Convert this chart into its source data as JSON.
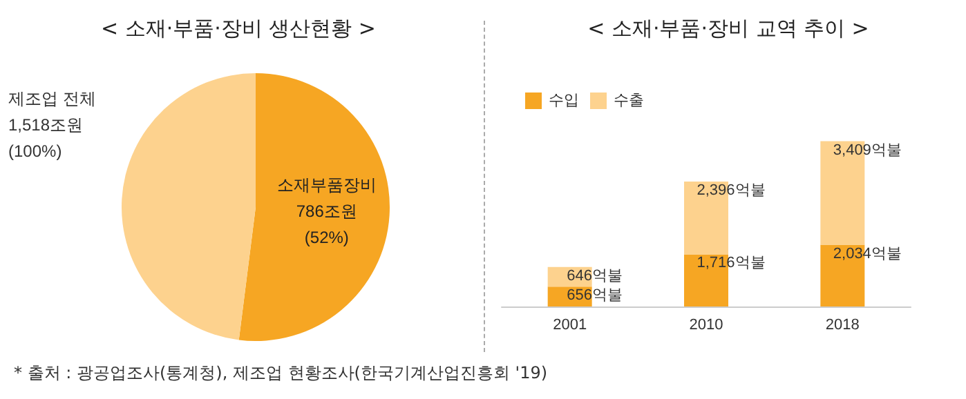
{
  "chart_data": [
    {
      "type": "pie",
      "title": "< 소재·부품·장비 생산현황 >",
      "categories": [
        "소재부품장비",
        null
      ],
      "values": [
        52,
        48
      ],
      "colors": [
        "#f6a623",
        "#fdd28e"
      ],
      "value_labels": [
        "786조원\n(52%)",
        null
      ],
      "legend": false,
      "annotations": [
        "제조업 전체\n1,518조원\n(100%)",
        "* 출처 : 광공업조사(통계청), 제조업 현황조사(한국기계산업진흥회 '19)"
      ]
    },
    {
      "type": "bar",
      "title": "< 소재·부품·장비 교역 추이 >",
      "categories": [
        "2001",
        "2010",
        "2018"
      ],
      "stacked": true,
      "legend": "top left",
      "tick_labels": "x",
      "grid": false,
      "series": [
        {
          "name": "수입",
          "color": "#f6a623",
          "values": [
            656,
            1716,
            2034
          ],
          "value_labels": [
            "656억불",
            "1,716억불",
            "2,034억불"
          ]
        },
        {
          "name": "수출",
          "color": "#fdd28e",
          "values": [
            646,
            2396,
            3409
          ],
          "value_labels": [
            "646억불",
            "2,396억불",
            "3,409억불"
          ]
        }
      ]
    }
  ]
}
